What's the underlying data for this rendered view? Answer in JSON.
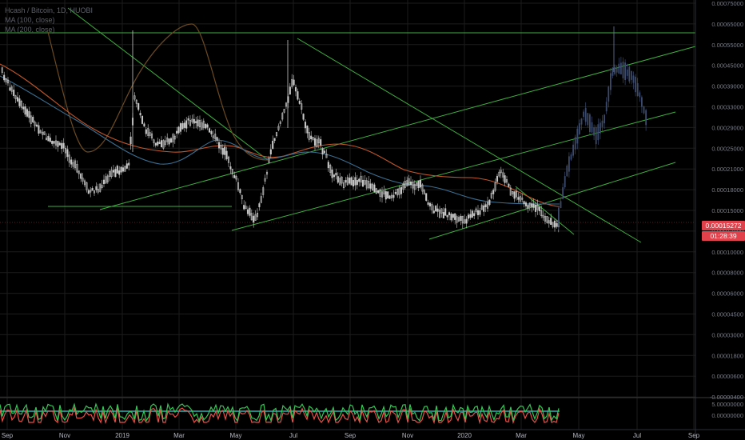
{
  "legend": {
    "title": "Hcash / Bitcoin, 1D, HUOBI",
    "ma1": "MA (100, close)",
    "ma2": "MA (200, close)"
  },
  "colors": {
    "background": "#000000",
    "grid": "#1c1c1c",
    "trendline": "#3fae3f",
    "candle": "#c8c8c8",
    "projection": "#3b4a6b",
    "ma100": "#3c6e91",
    "ma200": "#c0562a",
    "ma_brown": "#6b4a22",
    "price_tag": "#e0414b",
    "osc_green": "#35c755",
    "osc_red": "#e8514a",
    "osc_cyan": "#32b0b0"
  },
  "price_tag": {
    "price": "0.00015272",
    "countdown": "01:28:39"
  },
  "chart_data": {
    "type": "line",
    "title": "Hcash / Bitcoin, 1D, HUOBI",
    "xlabel": "",
    "ylabel": "",
    "grid": true,
    "x_ticks": [
      "Sep",
      "Nov",
      "2019",
      "Mar",
      "May",
      "Jul",
      "Sep",
      "Nov",
      "2020",
      "Mar",
      "May",
      "Jul",
      "Sep"
    ],
    "y_ticks": [
      "0.00075000",
      "0.00065000",
      "0.00055000",
      "0.00045000",
      "0.00039000",
      "0.00033000",
      "0.00029000",
      "0.00025000",
      "0.00021000",
      "0.00018000",
      "0.00015000",
      "0.00012000",
      "0.00010000",
      "0.00008000",
      "0.00006000",
      "0.00004500",
      "0.00003000",
      "0.00001800",
      "0.00000600",
      "-0.00000400"
    ],
    "osc_ticks": [
      "5.00000000",
      "0.00000000"
    ],
    "series": [
      {
        "name": "MA (100, close)",
        "x": [
          "Sep",
          "Nov",
          "2019",
          "Mar",
          "May",
          "Jul",
          "Sep",
          "Nov",
          "2020",
          "Mar"
        ],
        "values": [
          0.00043,
          0.00036,
          0.00029,
          0.00027,
          0.00028,
          0.00025,
          0.00026,
          0.00023,
          0.000195,
          0.000175
        ]
      },
      {
        "name": "MA (200, close)",
        "x": [
          "Sep",
          "Nov",
          "2019",
          "Mar",
          "May",
          "Jul",
          "Sep",
          "Nov",
          "2020",
          "Mar"
        ],
        "values": [
          0.00055,
          0.00047,
          0.00037,
          0.00031,
          0.00028,
          0.00029,
          0.00028,
          0.00025,
          0.00023,
          0.00019
        ]
      }
    ],
    "last_price": 0.00015272
  }
}
